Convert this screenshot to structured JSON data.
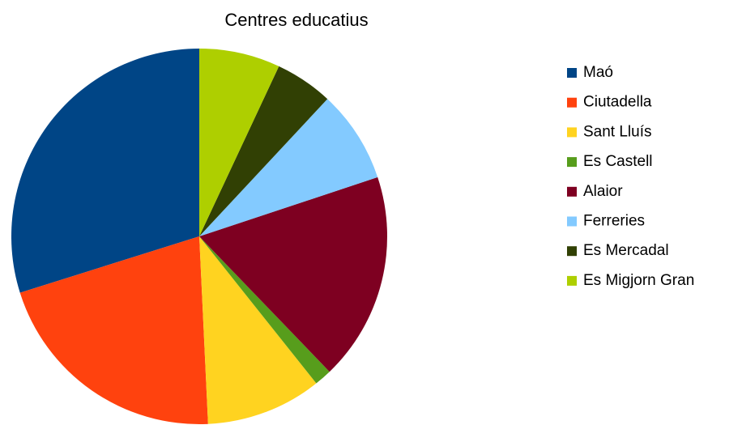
{
  "chart_data": {
    "type": "pie",
    "title": "Centres educatius",
    "categories": [
      "Maó",
      "Ciutadella",
      "Sant Lluís",
      "Es Castell",
      "Alaior",
      "Ferreries",
      "Es Mercadal",
      "Es Migjorn Gran"
    ],
    "values": [
      30,
      21,
      10,
      1.5,
      18,
      8,
      5,
      7
    ],
    "colors": [
      "#004586",
      "#ff420e",
      "#ffd320",
      "#579d1c",
      "#7e0021",
      "#83caff",
      "#314004",
      "#aecf00"
    ],
    "legend": "right"
  }
}
